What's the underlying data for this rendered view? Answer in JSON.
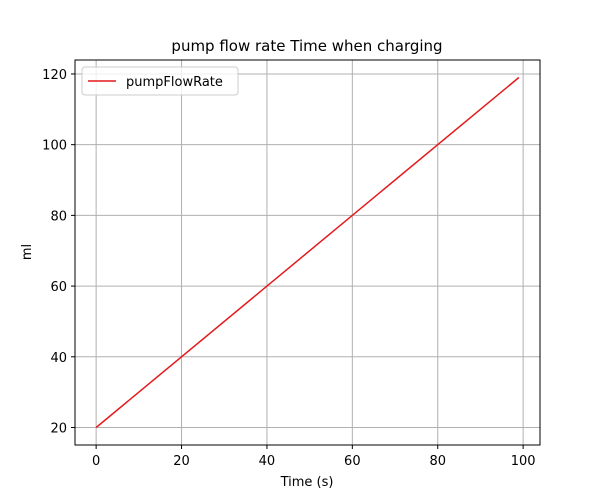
{
  "chart_data": {
    "type": "line",
    "title": "pump flow rate Time when charging",
    "xlabel": "Time (s)",
    "ylabel": "ml",
    "xlim": [
      -4.95,
      103.95
    ],
    "ylim": [
      15.05,
      123.95
    ],
    "xticks": [
      0,
      20,
      40,
      60,
      80,
      100
    ],
    "yticks": [
      20,
      40,
      60,
      80,
      100,
      120
    ],
    "grid": true,
    "legend_position": "top-left",
    "series": [
      {
        "name": "pumpFlowRate",
        "color": "#e41a1c",
        "x": [
          0,
          99
        ],
        "y": [
          20,
          119
        ]
      }
    ]
  }
}
